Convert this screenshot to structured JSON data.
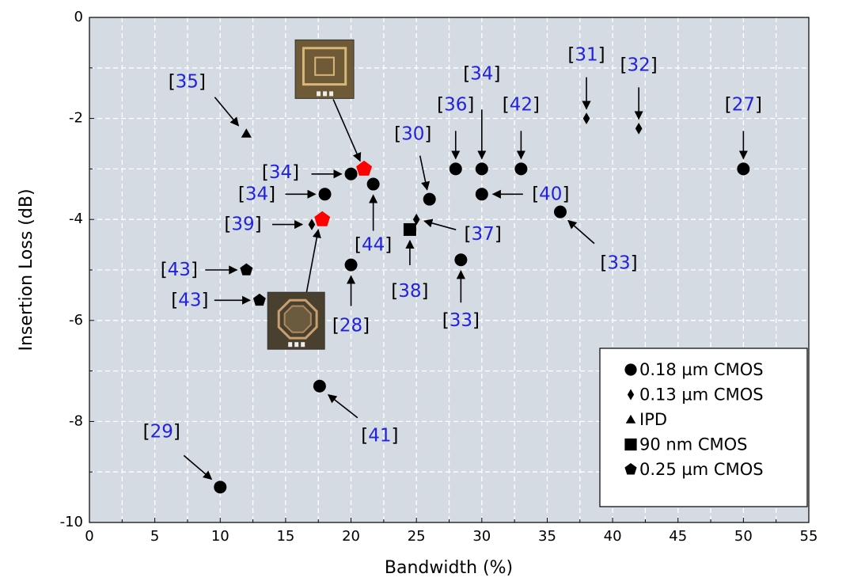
{
  "chart_data": {
    "type": "scatter",
    "x_label": "Bandwidth (%)",
    "y_label": "Insertion Loss (dB)",
    "xlim": [
      0,
      55
    ],
    "ylim": [
      -10,
      0
    ],
    "xticks": [
      0,
      5,
      10,
      15,
      20,
      25,
      30,
      35,
      40,
      45,
      50,
      55
    ],
    "yticks": [
      -10,
      -8,
      -6,
      -4,
      -2,
      0
    ],
    "grid": true,
    "legend": "lower right",
    "series": [
      {
        "name": "0.18 µm CMOS",
        "marker": "circle",
        "color": "#000000",
        "x": [
          18,
          20,
          21.7,
          26,
          28,
          30,
          33,
          30,
          36,
          28.4,
          20,
          17.6,
          10,
          50
        ],
        "values": [
          -3.5,
          -3.1,
          -3.3,
          -3.6,
          -3,
          -3,
          -3,
          -3.5,
          -3.85,
          -4.8,
          -4.9,
          -7.3,
          -9.3,
          -3
        ],
        "labels": [
          "[34]",
          "[34]",
          "[44]",
          "[30]",
          "[36]",
          "[34]",
          "[42]",
          "[40]",
          "[33]",
          "[33]",
          "[28]",
          "[41]",
          "[29]",
          "[27]"
        ]
      },
      {
        "name": "0.13 µm CMOS",
        "marker": "diamond",
        "color": "#000000",
        "x": [
          38,
          42,
          17,
          25
        ],
        "values": [
          -2,
          -2.2,
          -4.1,
          -4
        ],
        "labels": [
          "[31]",
          "[32]",
          "[39]",
          "[37]"
        ]
      },
      {
        "name": "IPD",
        "marker": "triangle",
        "color": "#000000",
        "x": [
          12
        ],
        "values": [
          -2.3
        ],
        "labels": [
          "[35]"
        ]
      },
      {
        "name": "90 nm CMOS",
        "marker": "square",
        "color": "#000000",
        "x": [
          24.5
        ],
        "values": [
          -4.2
        ],
        "labels": [
          "[38]"
        ]
      },
      {
        "name": "0.25 µm CMOS",
        "marker": "pentagon",
        "color": "#000000",
        "x": [
          12,
          13,
          21,
          17.8
        ],
        "values": [
          -5,
          -5.6,
          -3,
          -4
        ],
        "point_colors": [
          "#000000",
          "#000000",
          "#ff0000",
          "#ff0000"
        ],
        "labels": [
          "[43]",
          "[43]",
          null,
          null
        ]
      }
    ]
  }
}
